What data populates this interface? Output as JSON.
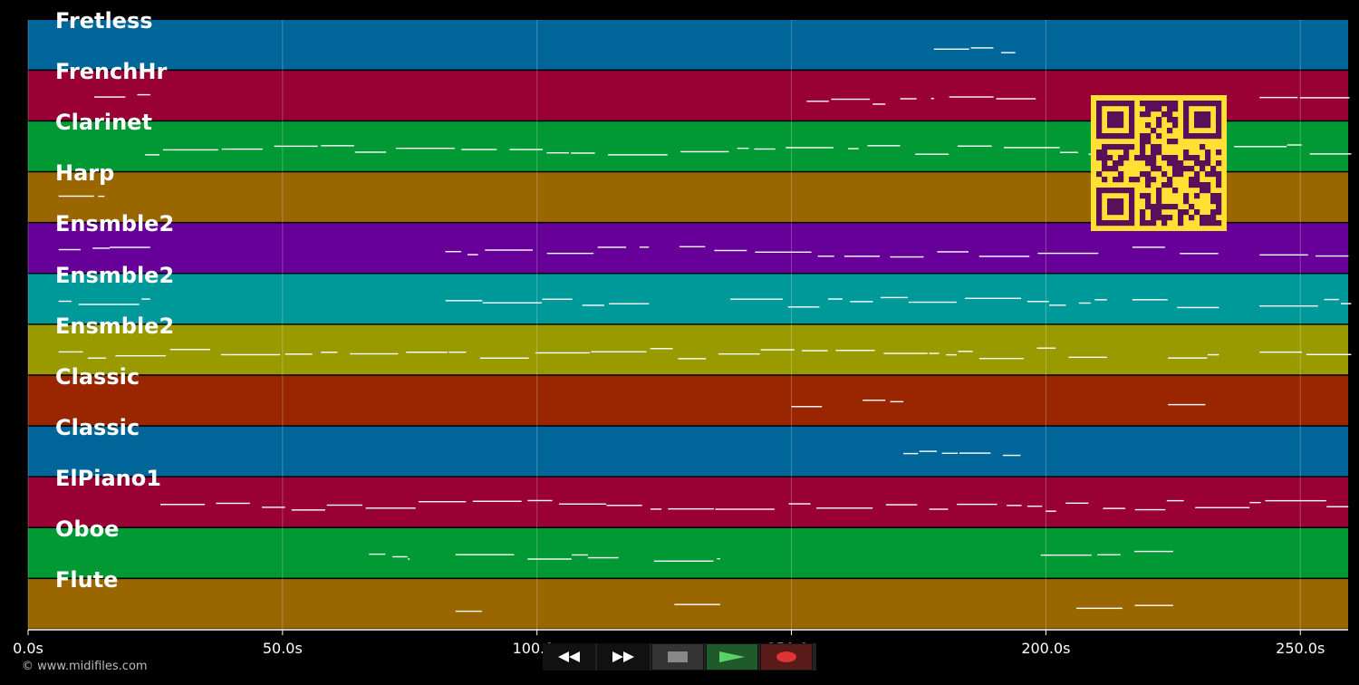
{
  "tracks": [
    {
      "name": "Fretless",
      "color": "#006699"
    },
    {
      "name": "FrenchHr",
      "color": "#990033"
    },
    {
      "name": "Clarinet",
      "color": "#009933"
    },
    {
      "name": "Harp",
      "color": "#996600"
    },
    {
      "name": "Ensmble2",
      "color": "#660099"
    },
    {
      "name": "Ensmble2",
      "color": "#009999"
    },
    {
      "name": "Ensmble2",
      "color": "#999900"
    },
    {
      "name": "Classic",
      "color": "#992600"
    },
    {
      "name": "Classic",
      "color": "#006699"
    },
    {
      "name": "ElPiano1",
      "color": "#990033"
    },
    {
      "name": "Oboe",
      "color": "#009933"
    },
    {
      "name": "Flute",
      "color": "#996600"
    }
  ],
  "timeline": {
    "ticks": [
      "0.0s",
      "50.0s",
      "100.0s",
      "150.0s",
      "200.0s",
      "250.0s"
    ]
  },
  "copyright": "© www.midifiles.com",
  "transport": {
    "rewind_icon": "rewind-icon",
    "forward_icon": "fast-forward-icon",
    "stop_icon": "stop-icon",
    "play_icon": "play-icon",
    "record_icon": "record-icon"
  },
  "qr": {
    "fg": "#ffe033",
    "bg": "#5a0f5a"
  }
}
